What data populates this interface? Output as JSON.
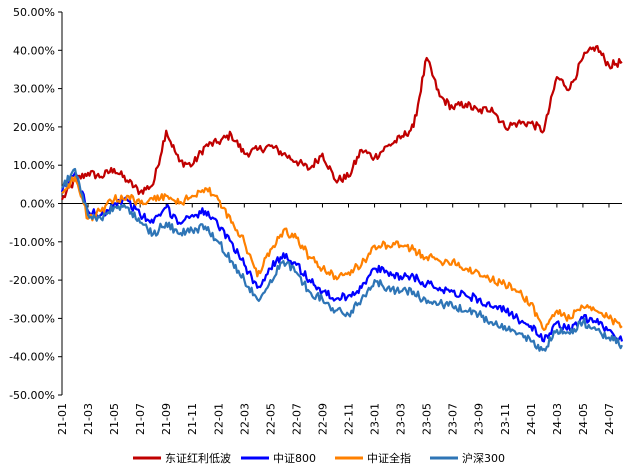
{
  "chart_data": {
    "type": "line",
    "title": "",
    "xlabel": "",
    "ylabel": "",
    "ylim": [
      -50,
      50
    ],
    "y_ticks": [
      50,
      40,
      30,
      20,
      10,
      0,
      -10,
      -20,
      -30,
      -40,
      -50
    ],
    "y_tick_labels": [
      "50.00%",
      "40.00%",
      "30.00%",
      "20.00%",
      "10.00%",
      "0.00%",
      "-10.00%",
      "-20.00%",
      "-30.00%",
      "-40.00%",
      "-50.00%"
    ],
    "x_tick_labels": [
      "21-01",
      "21-03",
      "21-05",
      "21-07",
      "21-09",
      "21-11",
      "22-01",
      "22-03",
      "22-05",
      "22-07",
      "22-09",
      "22-11",
      "23-01",
      "23-03",
      "23-05",
      "23-07",
      "23-09",
      "23-11",
      "24-01",
      "24-03",
      "24-05",
      "24-07"
    ],
    "x_range": [
      "2021-01",
      "2024-08"
    ],
    "grid": false,
    "legend_position": "bottom",
    "series": [
      {
        "name": "东证红利低波",
        "color": "#C00000",
        "x": [
          "2021-01",
          "2021-02",
          "2021-03",
          "2021-04",
          "2021-05",
          "2021-06",
          "2021-07",
          "2021-08",
          "2021-09",
          "2021-10",
          "2021-11",
          "2021-12",
          "2022-01",
          "2022-02",
          "2022-03",
          "2022-04",
          "2022-05",
          "2022-06",
          "2022-07",
          "2022-08",
          "2022-09",
          "2022-10",
          "2022-11",
          "2022-12",
          "2023-01",
          "2023-02",
          "2023-03",
          "2023-04",
          "2023-05",
          "2023-06",
          "2023-07",
          "2023-08",
          "2023-09",
          "2023-10",
          "2023-11",
          "2023-12",
          "2024-01",
          "2024-02",
          "2024-03",
          "2024-04",
          "2024-05",
          "2024-06",
          "2024-07",
          "2024-08"
        ],
        "values": [
          1,
          6,
          8,
          7,
          9,
          6,
          3,
          5,
          19,
          11,
          10,
          15,
          16,
          18,
          13,
          14,
          15,
          13,
          11,
          9,
          13,
          6,
          7,
          14,
          12,
          15,
          17,
          20,
          38,
          28,
          25,
          26,
          24,
          25,
          20,
          21,
          21,
          19,
          33,
          30,
          38,
          41,
          36,
          37
        ]
      },
      {
        "name": "中证800",
        "color": "#0000FF",
        "x": [
          "2021-01",
          "2021-02",
          "2021-03",
          "2021-04",
          "2021-05",
          "2021-06",
          "2021-07",
          "2021-08",
          "2021-09",
          "2021-10",
          "2021-11",
          "2021-12",
          "2022-01",
          "2022-02",
          "2022-03",
          "2022-04",
          "2022-05",
          "2022-06",
          "2022-07",
          "2022-08",
          "2022-09",
          "2022-10",
          "2022-11",
          "2022-12",
          "2023-01",
          "2023-02",
          "2023-03",
          "2023-04",
          "2023-05",
          "2023-06",
          "2023-07",
          "2023-08",
          "2023-09",
          "2023-10",
          "2023-11",
          "2023-12",
          "2024-01",
          "2024-02",
          "2024-03",
          "2024-04",
          "2024-05",
          "2024-06",
          "2024-07",
          "2024-08"
        ],
        "values": [
          3,
          8,
          -2,
          -3,
          0,
          1,
          -3,
          -5,
          -1,
          -5,
          -3,
          -2,
          -6,
          -10,
          -16,
          -22,
          -17,
          -13,
          -16,
          -20,
          -23,
          -25,
          -24,
          -22,
          -17,
          -18,
          -19,
          -19,
          -21,
          -22,
          -23,
          -24,
          -25,
          -27,
          -28,
          -30,
          -32,
          -36,
          -31,
          -33,
          -30,
          -31,
          -33,
          -36
        ]
      },
      {
        "name": "中证全指",
        "color": "#FF8000",
        "x": [
          "2021-01",
          "2021-02",
          "2021-03",
          "2021-04",
          "2021-05",
          "2021-06",
          "2021-07",
          "2021-08",
          "2021-09",
          "2021-10",
          "2021-11",
          "2021-12",
          "2022-01",
          "2022-02",
          "2022-03",
          "2022-04",
          "2022-05",
          "2022-06",
          "2022-07",
          "2022-08",
          "2022-09",
          "2022-10",
          "2022-11",
          "2022-12",
          "2023-01",
          "2023-02",
          "2023-03",
          "2023-04",
          "2023-05",
          "2023-06",
          "2023-07",
          "2023-08",
          "2023-09",
          "2023-10",
          "2023-11",
          "2023-12",
          "2024-01",
          "2024-02",
          "2024-03",
          "2024-04",
          "2024-05",
          "2024-06",
          "2024-07",
          "2024-08"
        ],
        "values": [
          3,
          7,
          -4,
          -2,
          1,
          2,
          0,
          1,
          2,
          0,
          2,
          4,
          1,
          -5,
          -10,
          -19,
          -12,
          -7,
          -9,
          -14,
          -17,
          -19,
          -18,
          -16,
          -11,
          -11,
          -11,
          -12,
          -14,
          -15,
          -15,
          -17,
          -18,
          -20,
          -21,
          -23,
          -26,
          -33,
          -28,
          -30,
          -27,
          -28,
          -30,
          -32
        ]
      },
      {
        "name": "沪深300",
        "color": "#2E75B6",
        "x": [
          "2021-01",
          "2021-02",
          "2021-03",
          "2021-04",
          "2021-05",
          "2021-06",
          "2021-07",
          "2021-08",
          "2021-09",
          "2021-10",
          "2021-11",
          "2021-12",
          "2022-01",
          "2022-02",
          "2022-03",
          "2022-04",
          "2022-05",
          "2022-06",
          "2022-07",
          "2022-08",
          "2022-09",
          "2022-10",
          "2022-11",
          "2022-12",
          "2023-01",
          "2023-02",
          "2023-03",
          "2023-04",
          "2023-05",
          "2023-06",
          "2023-07",
          "2023-08",
          "2023-09",
          "2023-10",
          "2023-11",
          "2023-12",
          "2024-01",
          "2024-02",
          "2024-03",
          "2024-04",
          "2024-05",
          "2024-06",
          "2024-07",
          "2024-08"
        ],
        "values": [
          4,
          9,
          -3,
          -4,
          -1,
          -1,
          -5,
          -8,
          -5,
          -8,
          -7,
          -6,
          -10,
          -15,
          -20,
          -25,
          -20,
          -15,
          -18,
          -23,
          -25,
          -28,
          -29,
          -25,
          -20,
          -22,
          -23,
          -23,
          -26,
          -26,
          -27,
          -28,
          -29,
          -31,
          -32,
          -34,
          -36,
          -38,
          -33,
          -34,
          -31,
          -33,
          -35,
          -37
        ]
      }
    ]
  }
}
